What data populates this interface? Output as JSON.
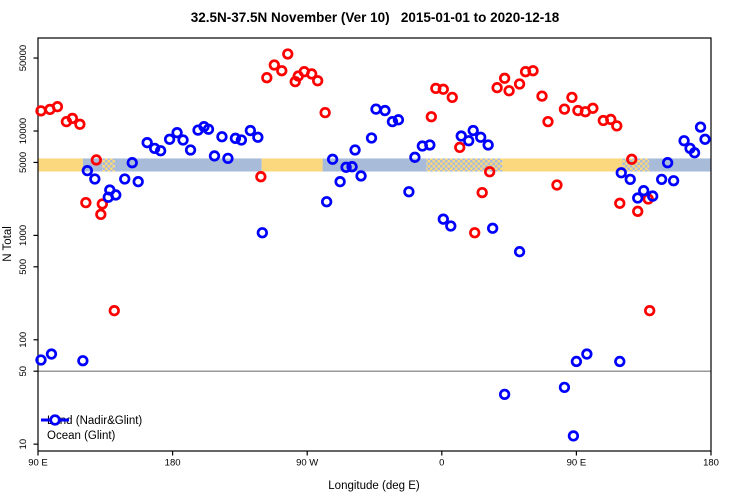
{
  "chart_data": {
    "type": "scatter",
    "title": "32.5N-37.5N November (Ver 10)   2015-01-01 to 2020-12-18",
    "xlabel": "Longitude (deg E)",
    "ylabel": "N Total",
    "x_axis": {
      "min": 0,
      "max": 450,
      "ticks": [
        {
          "deg": 0,
          "label": "90 E"
        },
        {
          "deg": 90,
          "label": "180"
        },
        {
          "deg": 180,
          "label": "90 W"
        },
        {
          "deg": 270,
          "label": "0"
        },
        {
          "deg": 360,
          "label": "90 E"
        },
        {
          "deg": 450,
          "label": "180"
        }
      ]
    },
    "y_axis": {
      "scale": "log",
      "min": 8.6,
      "max": 77800,
      "ticks": [
        {
          "value": 10,
          "label": "10"
        },
        {
          "value": 50,
          "label": "50"
        },
        {
          "value": 100,
          "label": "100"
        },
        {
          "value": 500,
          "label": "500"
        },
        {
          "value": 1000,
          "label": "1000"
        },
        {
          "value": 5000,
          "label": "5000"
        },
        {
          "value": 10000,
          "label": "10000"
        },
        {
          "value": 50000,
          "label": "50000"
        }
      ]
    },
    "reference_line": {
      "value": 50,
      "color": "#787878"
    },
    "land_ocean_band": {
      "top_value": 5460,
      "bottom_value": 4090,
      "land_color": "#FBD87E",
      "ocean_color": "#A8BCD9",
      "segments": [
        {
          "from": 0,
          "to": 30,
          "type": "land"
        },
        {
          "from": 30,
          "to": 43,
          "type": "ocean"
        },
        {
          "from": 43,
          "to": 51.5,
          "type": "mixed"
        },
        {
          "from": 51.5,
          "to": 149.6,
          "type": "ocean"
        },
        {
          "from": 149.6,
          "to": 190.3,
          "type": "land"
        },
        {
          "from": 190.3,
          "to": 259.7,
          "type": "ocean"
        },
        {
          "from": 259.7,
          "to": 310.5,
          "type": "mixed"
        },
        {
          "from": 310.5,
          "to": 390.6,
          "type": "land"
        },
        {
          "from": 390.6,
          "to": 408.6,
          "type": "mixed"
        },
        {
          "from": 408.6,
          "to": 450,
          "type": "ocean"
        }
      ]
    },
    "series": [
      {
        "name": "Land (Nadir&Glint)",
        "color": "#FF0000",
        "marker": "open-circle",
        "points": [
          [
            2,
            15600
          ],
          [
            8,
            16100
          ],
          [
            13,
            17100
          ],
          [
            19,
            12300
          ],
          [
            23,
            13200
          ],
          [
            28,
            11600
          ],
          [
            39,
            5280
          ],
          [
            32,
            2060
          ],
          [
            43,
            2000
          ],
          [
            42,
            1590
          ],
          [
            51,
            190
          ],
          [
            167,
            54700
          ],
          [
            158,
            42900
          ],
          [
            163,
            37800
          ],
          [
            153,
            32400
          ],
          [
            174,
            33600
          ],
          [
            178,
            37000
          ],
          [
            183,
            35200
          ],
          [
            187,
            30300
          ],
          [
            172,
            29700
          ],
          [
            192,
            15000
          ],
          [
            149,
            3650
          ],
          [
            266,
            25600
          ],
          [
            271,
            25100
          ],
          [
            277,
            21000
          ],
          [
            263,
            13700
          ],
          [
            307,
            26000
          ],
          [
            312,
            32000
          ],
          [
            315,
            24300
          ],
          [
            322,
            28200
          ],
          [
            326,
            37000
          ],
          [
            331,
            37800
          ],
          [
            337,
            21600
          ],
          [
            282,
            6970
          ],
          [
            302,
            4070
          ],
          [
            297,
            2570
          ],
          [
            292,
            1060
          ],
          [
            357,
            21000
          ],
          [
            352,
            16200
          ],
          [
            361,
            15700
          ],
          [
            366,
            15300
          ],
          [
            371,
            16500
          ],
          [
            341,
            12300
          ],
          [
            378,
            12600
          ],
          [
            383,
            12900
          ],
          [
            387,
            11200
          ],
          [
            397,
            5360
          ],
          [
            347,
            3040
          ],
          [
            389,
            2030
          ],
          [
            401,
            1700
          ],
          [
            408,
            2230
          ],
          [
            409,
            190
          ]
        ]
      },
      {
        "name": "Ocean (Glint)",
        "color": "#0000FF",
        "marker": "open-circle",
        "points": [
          [
            33,
            4170
          ],
          [
            38,
            3470
          ],
          [
            63,
            4970
          ],
          [
            58,
            3470
          ],
          [
            67,
            3270
          ],
          [
            48,
            2720
          ],
          [
            52,
            2440
          ],
          [
            47,
            2320
          ],
          [
            73,
            7730
          ],
          [
            78,
            6820
          ],
          [
            82,
            6470
          ],
          [
            88,
            8330
          ],
          [
            93,
            9640
          ],
          [
            97,
            8200
          ],
          [
            102,
            6580
          ],
          [
            107,
            10200
          ],
          [
            111,
            11000
          ],
          [
            114,
            10400
          ],
          [
            123,
            8810
          ],
          [
            132,
            8510
          ],
          [
            136,
            8200
          ],
          [
            142,
            10100
          ],
          [
            147,
            8710
          ],
          [
            118,
            5770
          ],
          [
            127,
            5470
          ],
          [
            197,
            5360
          ],
          [
            206,
            4490
          ],
          [
            210,
            4550
          ],
          [
            216,
            3710
          ],
          [
            202,
            3270
          ],
          [
            193,
            2100
          ],
          [
            150,
            1060
          ],
          [
            212,
            6580
          ],
          [
            223,
            8570
          ],
          [
            226,
            16200
          ],
          [
            232,
            15700
          ],
          [
            237,
            12300
          ],
          [
            241,
            12800
          ],
          [
            257,
            7180
          ],
          [
            262,
            7350
          ],
          [
            252,
            5600
          ],
          [
            283,
            8950
          ],
          [
            291,
            10100
          ],
          [
            296,
            8710
          ],
          [
            288,
            8070
          ],
          [
            301,
            7350
          ],
          [
            248,
            2620
          ],
          [
            271,
            1430
          ],
          [
            276,
            1230
          ],
          [
            304,
            1170
          ],
          [
            322,
            698
          ],
          [
            390,
            3980
          ],
          [
            396,
            3440
          ],
          [
            421,
            4970
          ],
          [
            417,
            3440
          ],
          [
            425,
            3340
          ],
          [
            432,
            8070
          ],
          [
            436,
            6820
          ],
          [
            439,
            6190
          ],
          [
            446,
            8330
          ],
          [
            443,
            10900
          ],
          [
            405,
            2680
          ],
          [
            411,
            2380
          ],
          [
            401,
            2280
          ],
          [
            9,
            73
          ],
          [
            2,
            64
          ],
          [
            30,
            63
          ],
          [
            367,
            73
          ],
          [
            360,
            62
          ],
          [
            389,
            62
          ],
          [
            352,
            35
          ],
          [
            312,
            30
          ],
          [
            358,
            12
          ]
        ]
      }
    ]
  }
}
